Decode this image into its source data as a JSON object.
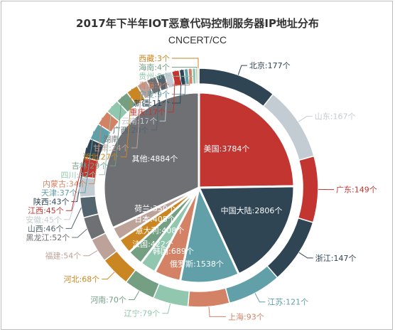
{
  "chart_data": {
    "type": "pie",
    "title": "2017年下半年IOT恶意代码控制服务器IP地址分布",
    "subtitle": "CNCERT/CC",
    "unit": "个",
    "inner": {
      "description": "inner pie: by country",
      "slices": [
        {
          "label": "美国",
          "value": 3784,
          "color": "#c23531"
        },
        {
          "label": "中国大陆",
          "value": 2806,
          "color": "#2f4554"
        },
        {
          "label": "俄罗斯",
          "value": 1538,
          "color": "#61a0a8"
        },
        {
          "label": "韩国",
          "value": 689,
          "color": "#d48265"
        },
        {
          "label": "法国",
          "value": 422,
          "color": "#91c7ae"
        },
        {
          "label": "意大利",
          "value": 408,
          "color": "#749f83"
        },
        {
          "label": "日本",
          "value": 405,
          "color": "#ca8622"
        },
        {
          "label": "荷兰",
          "value": 350,
          "color": "#bda29a"
        },
        {
          "label": "其他",
          "value": 4884,
          "color": "#6e7074"
        }
      ]
    },
    "outer": {
      "description": "outer ring: by province (China)",
      "slices": [
        {
          "label": "北京",
          "value": 177,
          "color": "#2f4554"
        },
        {
          "label": "山东",
          "value": 167,
          "color": "#c4ccd3"
        },
        {
          "label": "广东",
          "value": 149,
          "color": "#c23531"
        },
        {
          "label": "浙江",
          "value": 147,
          "color": "#2f4554"
        },
        {
          "label": "江苏",
          "value": 121,
          "color": "#61a0a8"
        },
        {
          "label": "上海",
          "value": 93,
          "color": "#d48265"
        },
        {
          "label": "辽宁",
          "value": 79,
          "color": "#91c7ae"
        },
        {
          "label": "河南",
          "value": 70,
          "color": "#749f83"
        },
        {
          "label": "河北",
          "value": 68,
          "color": "#ca8622"
        },
        {
          "label": "福建",
          "value": 54,
          "color": "#bda29a"
        },
        {
          "label": "黑龙江",
          "value": 52,
          "color": "#6e7074"
        },
        {
          "label": "山西",
          "value": 46,
          "color": "#546570"
        },
        {
          "label": "安徽",
          "value": 45,
          "color": "#c4ccd3"
        },
        {
          "label": "江西",
          "value": 45,
          "color": "#c23531"
        },
        {
          "label": "陕西",
          "value": 43,
          "color": "#2f4554"
        },
        {
          "label": "天津",
          "value": 37,
          "color": "#61a0a8"
        },
        {
          "label": "内蒙古",
          "value": 34,
          "color": "#d48265"
        },
        {
          "label": "四川",
          "value": 32,
          "color": "#91c7ae"
        },
        {
          "label": "吉林",
          "value": 29,
          "color": "#749f83"
        },
        {
          "label": "湖北",
          "value": 27,
          "color": "#ca8622"
        },
        {
          "label": "甘肃",
          "value": 24,
          "color": "#bda29a"
        },
        {
          "label": "湖南",
          "value": 22,
          "color": "#6e7074"
        },
        {
          "label": "广西",
          "value": 20,
          "color": "#546570"
        },
        {
          "label": "云南",
          "value": 17,
          "color": "#c4ccd3"
        },
        {
          "label": "重庆",
          "value": 17,
          "color": "#c23531"
        },
        {
          "label": "新疆",
          "value": 11,
          "color": "#2f4554"
        },
        {
          "label": "宁夏",
          "value": 9,
          "color": "#61a0a8"
        },
        {
          "label": "青海",
          "value": 9,
          "color": "#d48265"
        },
        {
          "label": "贵州",
          "value": 8,
          "color": "#91c7ae"
        },
        {
          "label": "海南",
          "value": 4,
          "color": "#749f83"
        },
        {
          "label": "西藏",
          "value": 3,
          "color": "#ca8622"
        }
      ]
    }
  }
}
